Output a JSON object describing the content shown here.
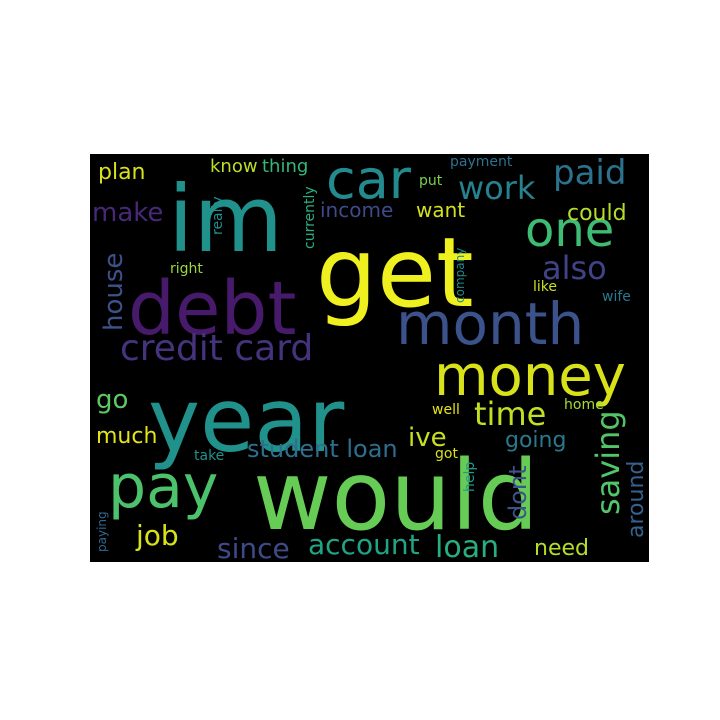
{
  "wordcloud": {
    "background": "#000000",
    "words": [
      {
        "text": "would",
        "color": "#66cc55"
      },
      {
        "text": "year",
        "color": "#21918c"
      },
      {
        "text": "get",
        "color": "#eef01f"
      },
      {
        "text": "im",
        "color": "#21918c"
      },
      {
        "text": "debt",
        "color": "#481a6c"
      },
      {
        "text": "month",
        "color": "#3b528b"
      },
      {
        "text": "money",
        "color": "#d8e219"
      },
      {
        "text": "pay",
        "color": "#4cc26c"
      },
      {
        "text": "car",
        "color": "#238a8d"
      },
      {
        "text": "one",
        "color": "#3fbc73"
      },
      {
        "text": "credit card",
        "color": "#46337e"
      },
      {
        "text": "paid",
        "color": "#2c728e"
      },
      {
        "text": "work",
        "color": "#26828e"
      },
      {
        "text": "also",
        "color": "#404387"
      },
      {
        "text": "time",
        "color": "#c2df23"
      },
      {
        "text": "saving",
        "color": "#52c569"
      },
      {
        "text": "loan",
        "color": "#29af7f"
      },
      {
        "text": "account",
        "color": "#20a486"
      },
      {
        "text": "since",
        "color": "#3e4a89"
      },
      {
        "text": "job",
        "color": "#d8e219"
      },
      {
        "text": "house",
        "color": "#3b528b"
      },
      {
        "text": "make",
        "color": "#482878"
      },
      {
        "text": "student loan",
        "color": "#2e6e8e"
      },
      {
        "text": "ive",
        "color": "#c8e020"
      },
      {
        "text": "going",
        "color": "#2a788e"
      },
      {
        "text": "around",
        "color": "#34618d"
      },
      {
        "text": "dont",
        "color": "#3b528b"
      },
      {
        "text": "go",
        "color": "#5ec962"
      },
      {
        "text": "much",
        "color": "#e2e418"
      },
      {
        "text": "need",
        "color": "#b5de2b"
      },
      {
        "text": "could",
        "color": "#b5de2b"
      },
      {
        "text": "plan",
        "color": "#d8e219"
      },
      {
        "text": "income",
        "color": "#3e4a89"
      },
      {
        "text": "want",
        "color": "#d2e21b"
      },
      {
        "text": "know",
        "color": "#bddf26"
      },
      {
        "text": "thing",
        "color": "#35b779"
      },
      {
        "text": "payment",
        "color": "#2c728e"
      },
      {
        "text": "really",
        "color": "#218f8d"
      },
      {
        "text": "currently",
        "color": "#29af7f"
      },
      {
        "text": "company",
        "color": "#238a8d"
      },
      {
        "text": "put",
        "color": "#7ad151"
      },
      {
        "text": "right",
        "color": "#9bd93c"
      },
      {
        "text": "like",
        "color": "#c8e020"
      },
      {
        "text": "wife",
        "color": "#2a788e"
      },
      {
        "text": "well",
        "color": "#e5e419"
      },
      {
        "text": "home",
        "color": "#a5db36"
      },
      {
        "text": "take",
        "color": "#21918c"
      },
      {
        "text": "got",
        "color": "#d8e219"
      },
      {
        "text": "help",
        "color": "#1f9e89"
      },
      {
        "text": "paying",
        "color": "#31688e"
      }
    ]
  }
}
